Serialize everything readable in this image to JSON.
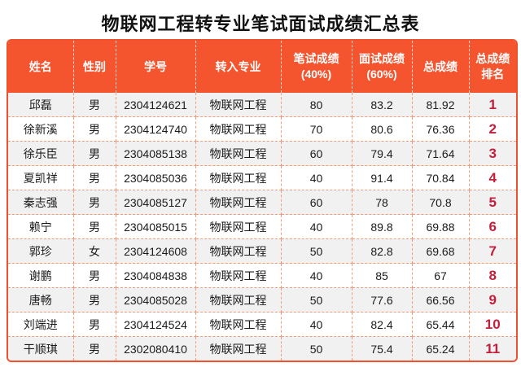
{
  "title": "物联网工程转专业笔试面试成绩汇总表",
  "colors": {
    "header_orange": "#f4552f",
    "outer_border_orange": "#f1502d",
    "row_alt_gray": "#f1f1f1",
    "rank_red": "#c41e3a",
    "body_text": "#1b1b1b"
  },
  "table": {
    "headers": {
      "name": "姓名",
      "gender": "性别",
      "student_id": "学号",
      "major": "转入专业",
      "written": "笔试成绩\n(40%)",
      "interview": "面试成绩\n(60%)",
      "total": "总成绩",
      "rank": "总成绩\n排名"
    },
    "rows": [
      {
        "name": "邱磊",
        "gender": "男",
        "student_id": "2304124621",
        "major": "物联网工程",
        "written": "80",
        "interview": "83.2",
        "total": "81.92",
        "rank": "1"
      },
      {
        "name": "徐新溪",
        "gender": "男",
        "student_id": "2304124740",
        "major": "物联网工程",
        "written": "70",
        "interview": "80.6",
        "total": "76.36",
        "rank": "2"
      },
      {
        "name": "徐乐臣",
        "gender": "男",
        "student_id": "2304085138",
        "major": "物联网工程",
        "written": "60",
        "interview": "79.4",
        "total": "71.64",
        "rank": "3"
      },
      {
        "name": "夏凯祥",
        "gender": "男",
        "student_id": "2304085036",
        "major": "物联网工程",
        "written": "40",
        "interview": "91.4",
        "total": "70.84",
        "rank": "4"
      },
      {
        "name": "秦志强",
        "gender": "男",
        "student_id": "2304085127",
        "major": "物联网工程",
        "written": "60",
        "interview": "78",
        "total": "70.8",
        "rank": "5"
      },
      {
        "name": "赖宁",
        "gender": "男",
        "student_id": "2304085015",
        "major": "物联网工程",
        "written": "40",
        "interview": "89.8",
        "total": "69.88",
        "rank": "6"
      },
      {
        "name": "郭珍",
        "gender": "女",
        "student_id": "2304124608",
        "major": "物联网工程",
        "written": "50",
        "interview": "82.8",
        "total": "69.68",
        "rank": "7"
      },
      {
        "name": "谢鹏",
        "gender": "男",
        "student_id": "2304084838",
        "major": "物联网工程",
        "written": "40",
        "interview": "85",
        "total": "67",
        "rank": "8"
      },
      {
        "name": "唐畅",
        "gender": "男",
        "student_id": "2304085028",
        "major": "物联网工程",
        "written": "50",
        "interview": "77.6",
        "total": "66.56",
        "rank": "9"
      },
      {
        "name": "刘端进",
        "gender": "男",
        "student_id": "2304124524",
        "major": "物联网工程",
        "written": "40",
        "interview": "82.4",
        "total": "65.44",
        "rank": "10"
      },
      {
        "name": "干顺琪",
        "gender": "男",
        "student_id": "2302080410",
        "major": "物联网工程",
        "written": "50",
        "interview": "75.4",
        "total": "65.24",
        "rank": "11"
      }
    ]
  }
}
